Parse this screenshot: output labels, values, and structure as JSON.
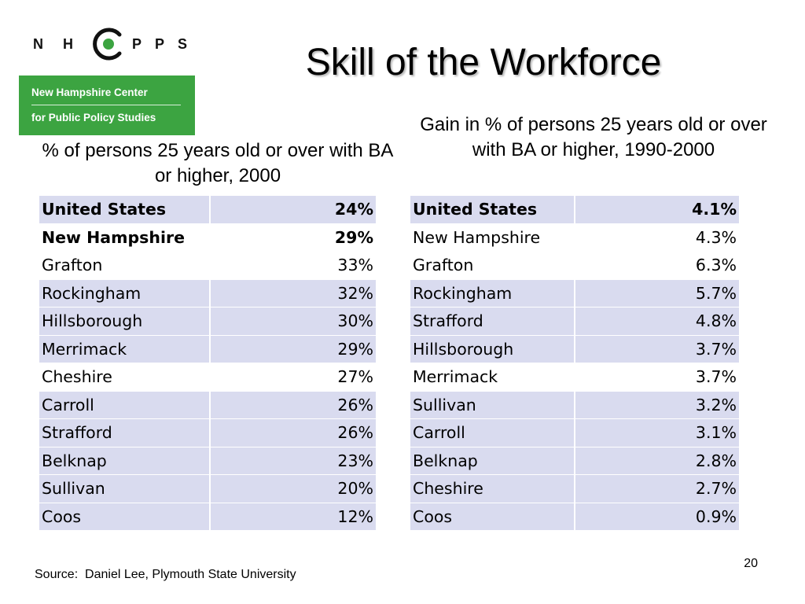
{
  "logo": {
    "letters": [
      "N",
      "H",
      "P",
      "P",
      "S"
    ],
    "line1": "New Hampshire Center",
    "line2": "for Public Policy Studies",
    "colors": {
      "green": "#3ca441",
      "ring": "#111111",
      "dot": "#3ca441"
    }
  },
  "title": "Skill of the Workforce",
  "left_table": {
    "caption": "% of persons 25 years old or over with BA or higher, 2000",
    "rows": [
      {
        "name": "United States",
        "value": "24%",
        "bold": true,
        "shaded": true
      },
      {
        "name": "New Hampshire",
        "value": "29%",
        "bold": true,
        "shaded": false
      },
      {
        "name": "Grafton",
        "value": "33%",
        "bold": false,
        "shaded": false
      },
      {
        "name": "Rockingham",
        "value": "32%",
        "bold": false,
        "shaded": true
      },
      {
        "name": "Hillsborough",
        "value": "30%",
        "bold": false,
        "shaded": true
      },
      {
        "name": "Merrimack",
        "value": "29%",
        "bold": false,
        "shaded": true
      },
      {
        "name": "Cheshire",
        "value": "27%",
        "bold": false,
        "shaded": false
      },
      {
        "name": "Carroll",
        "value": "26%",
        "bold": false,
        "shaded": true
      },
      {
        "name": "Strafford",
        "value": "26%",
        "bold": false,
        "shaded": true
      },
      {
        "name": "Belknap",
        "value": "23%",
        "bold": false,
        "shaded": true
      },
      {
        "name": "Sullivan",
        "value": "20%",
        "bold": false,
        "shaded": true
      },
      {
        "name": "Coos",
        "value": "12%",
        "bold": false,
        "shaded": true
      }
    ]
  },
  "right_table": {
    "caption": "Gain in % of persons 25 years old or over with BA or higher, 1990-2000",
    "rows": [
      {
        "name": "United States",
        "value": "4.1%",
        "bold": true,
        "shaded": true
      },
      {
        "name": "New Hampshire",
        "value": "4.3%",
        "bold": false,
        "shaded": false
      },
      {
        "name": "Grafton",
        "value": "6.3%",
        "bold": false,
        "shaded": false
      },
      {
        "name": "Rockingham",
        "value": "5.7%",
        "bold": false,
        "shaded": true
      },
      {
        "name": "Strafford",
        "value": "4.8%",
        "bold": false,
        "shaded": true
      },
      {
        "name": "Hillsborough",
        "value": "3.7%",
        "bold": false,
        "shaded": true
      },
      {
        "name": "Merrimack",
        "value": "3.7%",
        "bold": false,
        "shaded": false
      },
      {
        "name": "Sullivan",
        "value": "3.2%",
        "bold": false,
        "shaded": true
      },
      {
        "name": "Carroll",
        "value": "3.1%",
        "bold": false,
        "shaded": true
      },
      {
        "name": "Belknap",
        "value": "2.8%",
        "bold": false,
        "shaded": true
      },
      {
        "name": "Cheshire",
        "value": "2.7%",
        "bold": false,
        "shaded": true
      },
      {
        "name": "Coos",
        "value": "0.9%",
        "bold": false,
        "shaded": true
      }
    ]
  },
  "colors": {
    "row_shade": "#d9dbef",
    "title_text": "#000000"
  },
  "footer": {
    "source": "Source:  Daniel Lee, Plymouth State University",
    "page_number": "20"
  }
}
